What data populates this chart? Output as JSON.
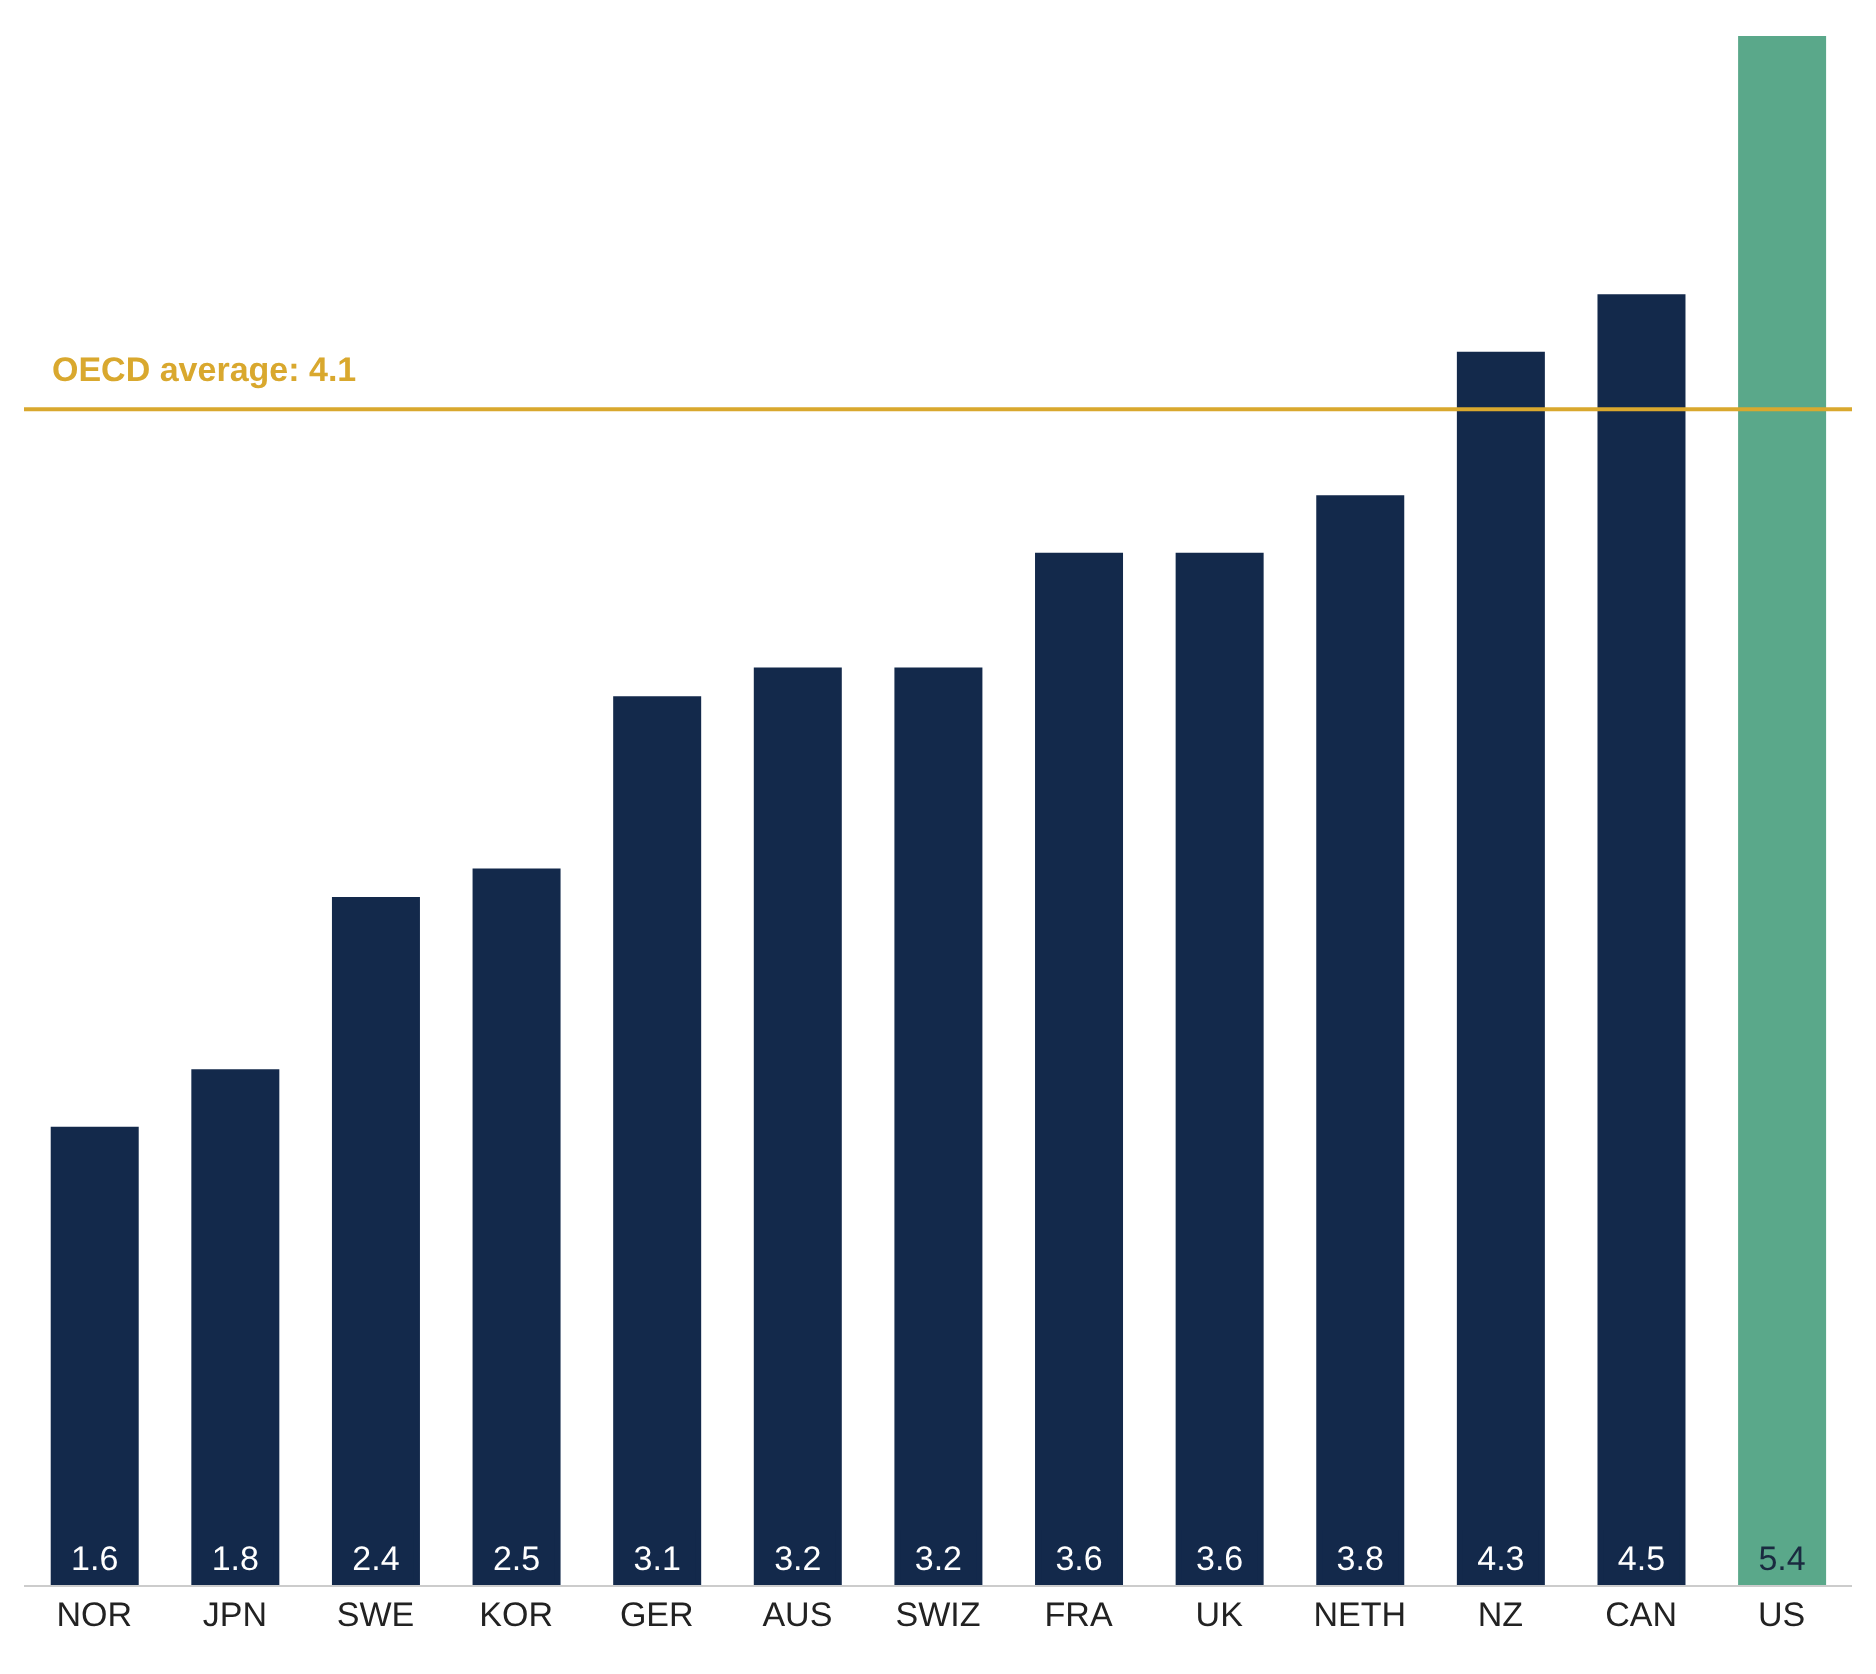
{
  "chart_data": {
    "type": "bar",
    "categories": [
      "NOR",
      "JPN",
      "SWE",
      "KOR",
      "GER",
      "AUS",
      "SWIZ",
      "FRA",
      "UK",
      "NETH",
      "NZ",
      "CAN",
      "US"
    ],
    "values": [
      1.6,
      1.8,
      2.4,
      2.5,
      3.1,
      3.2,
      3.2,
      3.6,
      3.6,
      3.8,
      4.3,
      4.5,
      5.4
    ],
    "colors": [
      "#13294b",
      "#13294b",
      "#13294b",
      "#13294b",
      "#13294b",
      "#13294b",
      "#13294b",
      "#13294b",
      "#13294b",
      "#13294b",
      "#13294b",
      "#13294b",
      "#5aa88a"
    ],
    "data_labels": true,
    "ref_lines": [
      {
        "axis": "y",
        "value": 4.1,
        "label": "OECD average: 4.1",
        "color": "#d9a82e"
      }
    ],
    "grid": false,
    "legend": false
  }
}
